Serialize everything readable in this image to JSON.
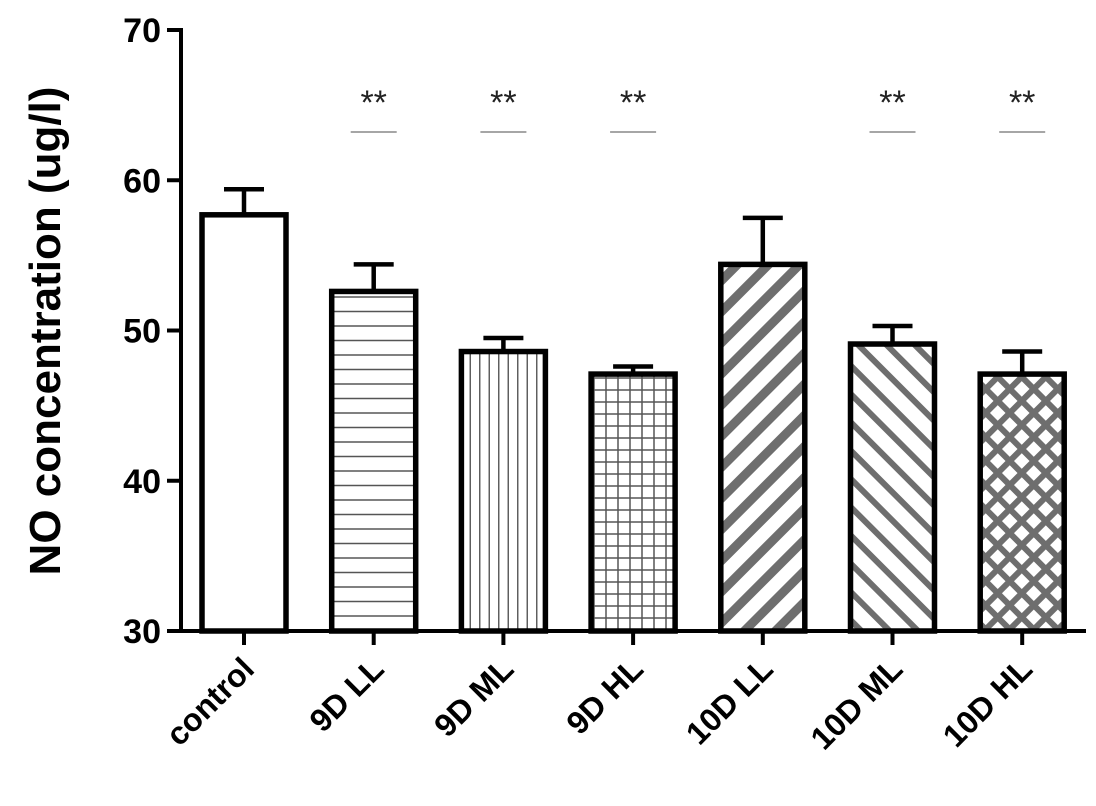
{
  "chart_data": {
    "type": "bar",
    "title": "",
    "xlabel": "",
    "ylabel": "NO concentration (ug/l)",
    "ylim": [
      30,
      70
    ],
    "yticks": [
      30,
      40,
      50,
      60,
      70
    ],
    "grid": false,
    "categories": [
      "control",
      "9D LL",
      "9D ML",
      "9D HL",
      "10D LL",
      "10D ML",
      "10D HL"
    ],
    "values": [
      57.7,
      52.6,
      48.6,
      47.1,
      54.4,
      49.1,
      47.1
    ],
    "error": [
      1.7,
      1.8,
      0.9,
      0.5,
      3.1,
      1.2,
      1.5
    ],
    "significance": [
      "",
      "**",
      "**",
      "**",
      "",
      "**",
      "**"
    ],
    "fill_patterns": [
      "solid-white",
      "horizontal-lines",
      "vertical-lines",
      "grid",
      "diagonal-forward",
      "diagonal-backward",
      "crosshatch"
    ],
    "colors": {
      "bar_edge": "#000000",
      "pattern_dark": "#6e6e6e",
      "pattern_light": "#555555"
    }
  }
}
